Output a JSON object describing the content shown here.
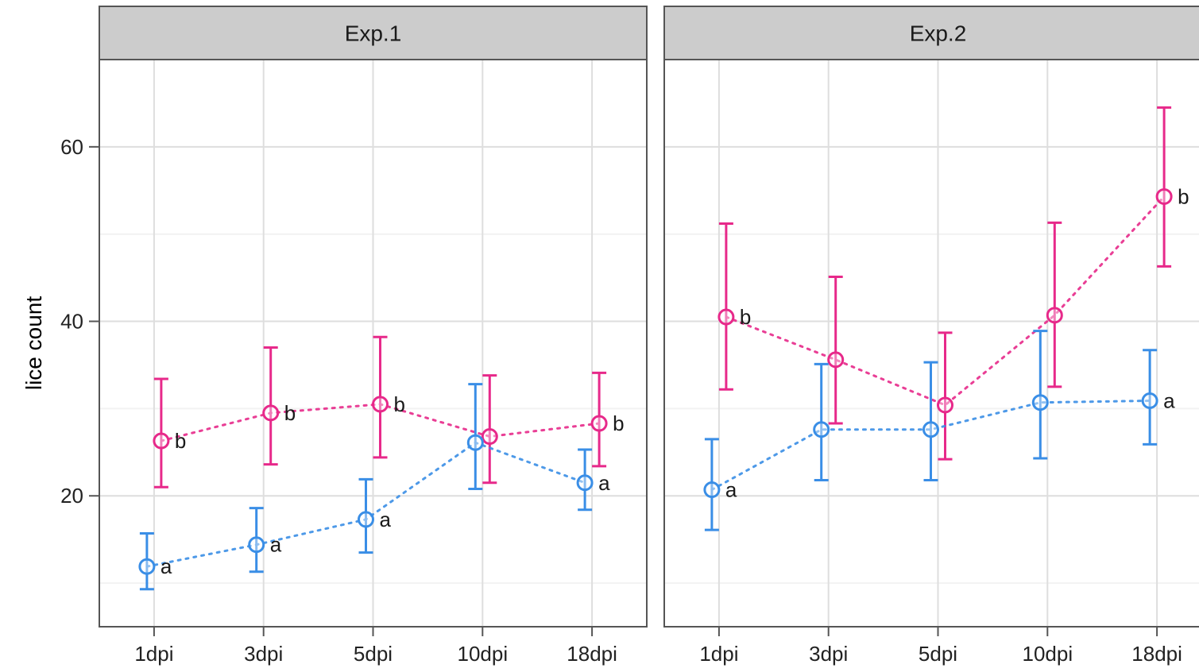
{
  "chart_data": {
    "type": "line",
    "ylabel": "lice count",
    "ylim": [
      5,
      70
    ],
    "yticks": [
      20,
      40,
      60
    ],
    "categories": [
      "1dpi",
      "3dpi",
      "5dpi",
      "10dpi",
      "18dpi"
    ],
    "grid": true,
    "colors": {
      "pink": "#e7298a",
      "blue": "#3a8ee6"
    },
    "panels": [
      {
        "title": "Exp.1",
        "series": [
          {
            "color_key": "pink",
            "values": [
              26.3,
              29.5,
              30.5,
              26.8,
              28.3
            ],
            "lower": [
              21.0,
              23.6,
              24.4,
              21.5,
              23.4
            ],
            "upper": [
              33.4,
              37.0,
              38.2,
              33.8,
              34.1
            ],
            "letters": [
              "b",
              "b",
              "b",
              "",
              "b"
            ]
          },
          {
            "color_key": "blue",
            "values": [
              11.9,
              14.4,
              17.3,
              26.1,
              21.5
            ],
            "lower": [
              9.3,
              11.3,
              13.5,
              20.8,
              18.4
            ],
            "upper": [
              15.7,
              18.6,
              21.9,
              32.8,
              25.3
            ],
            "letters": [
              "a",
              "a",
              "a",
              "",
              "a"
            ]
          }
        ]
      },
      {
        "title": "Exp.2",
        "series": [
          {
            "color_key": "pink",
            "values": [
              40.5,
              35.6,
              30.4,
              40.7,
              54.3
            ],
            "lower": [
              32.2,
              28.3,
              24.2,
              32.5,
              46.3
            ],
            "upper": [
              51.2,
              45.1,
              38.7,
              51.3,
              64.5
            ],
            "letters": [
              "b",
              "",
              "",
              "",
              "b"
            ]
          },
          {
            "color_key": "blue",
            "values": [
              20.7,
              27.6,
              27.6,
              30.7,
              30.9
            ],
            "lower": [
              16.1,
              21.8,
              21.8,
              24.3,
              25.9
            ],
            "upper": [
              26.5,
              35.1,
              35.3,
              38.9,
              36.7
            ],
            "letters": [
              "a",
              "",
              "",
              "",
              "a"
            ]
          }
        ]
      }
    ]
  }
}
